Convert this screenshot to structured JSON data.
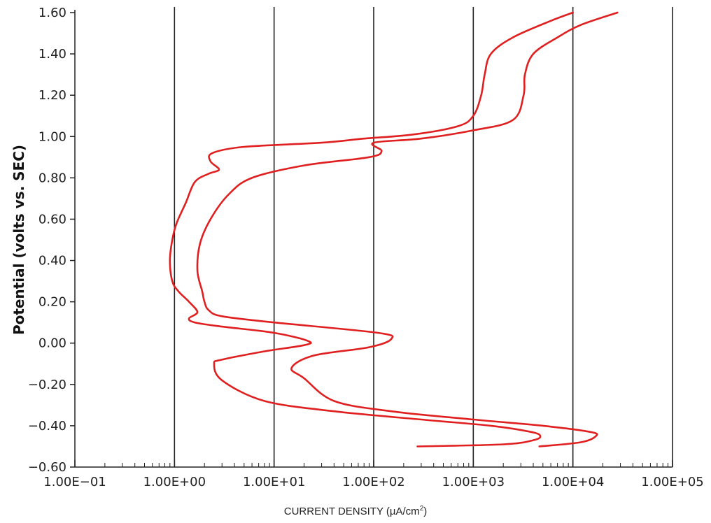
{
  "chart_data": {
    "type": "line",
    "xscale": "log",
    "xlim": [
      0.1,
      100000
    ],
    "ylim": [
      -0.6,
      1.6
    ],
    "ylabel": "Potential (volts vs. SEC)",
    "xlabel_main": "CURRENT DENSITY (µA/cm",
    "xlabel_sup": "2",
    "xlabel_close": ")",
    "x_ticks": [
      {
        "value": 0.1,
        "label": "1.00E−01"
      },
      {
        "value": 1,
        "label": "1.00E+00"
      },
      {
        "value": 10,
        "label": "1.00E+01"
      },
      {
        "value": 100,
        "label": "1.00E+02"
      },
      {
        "value": 1000,
        "label": "1.00E+03"
      },
      {
        "value": 10000,
        "label": "1.00E+04"
      },
      {
        "value": 100000,
        "label": "1.00E+05"
      }
    ],
    "y_ticks": [
      {
        "value": 1.6,
        "label": "1.60"
      },
      {
        "value": 1.4,
        "label": "1.40"
      },
      {
        "value": 1.2,
        "label": "1.20"
      },
      {
        "value": 1.0,
        "label": "1.00"
      },
      {
        "value": 0.8,
        "label": "0.80"
      },
      {
        "value": 0.6,
        "label": "0.60"
      },
      {
        "value": 0.4,
        "label": "0.40"
      },
      {
        "value": 0.2,
        "label": "0.20"
      },
      {
        "value": 0.0,
        "label": "0.00"
      },
      {
        "value": -0.2,
        "label": "−0.20"
      },
      {
        "value": -0.4,
        "label": "−0.40"
      },
      {
        "value": -0.6,
        "label": "−0.60"
      }
    ],
    "vertical_gridlines_at": [
      1,
      10,
      100,
      1000,
      10000,
      100000
    ],
    "series_color": "#e02020",
    "series": [
      {
        "points": [
          [
            275,
            -0.5
          ],
          [
            2000,
            -0.49
          ],
          [
            4000,
            -0.47
          ],
          [
            4700,
            -0.45
          ],
          [
            3800,
            -0.43
          ],
          [
            1500,
            -0.4
          ],
          [
            300,
            -0.37
          ],
          [
            40,
            -0.33
          ],
          [
            8,
            -0.28
          ],
          [
            3,
            -0.18
          ],
          [
            2.5,
            -0.1
          ],
          [
            3,
            -0.08
          ],
          [
            8,
            -0.04
          ],
          [
            20,
            -0.01
          ],
          [
            22,
            0.01
          ],
          [
            10,
            0.05
          ],
          [
            3,
            0.08
          ],
          [
            1.6,
            0.1
          ],
          [
            1.4,
            0.12
          ],
          [
            1.7,
            0.15
          ],
          [
            1.4,
            0.2
          ],
          [
            1.1,
            0.25
          ],
          [
            0.95,
            0.3
          ],
          [
            0.9,
            0.4
          ],
          [
            0.95,
            0.5
          ],
          [
            1.05,
            0.58
          ],
          [
            1.3,
            0.68
          ],
          [
            1.6,
            0.78
          ],
          [
            2.2,
            0.82
          ],
          [
            2.8,
            0.84
          ],
          [
            2.3,
            0.88
          ],
          [
            2.4,
            0.92
          ],
          [
            5,
            0.95
          ],
          [
            30,
            0.97
          ],
          [
            80,
            0.99
          ],
          [
            250,
            1.01
          ],
          [
            700,
            1.05
          ],
          [
            1000,
            1.1
          ],
          [
            1200,
            1.2
          ],
          [
            1300,
            1.3
          ],
          [
            1500,
            1.4
          ],
          [
            2500,
            1.48
          ],
          [
            6000,
            1.56
          ],
          [
            10000,
            1.6
          ]
        ]
      },
      {
        "points": [
          [
            4600,
            -0.5
          ],
          [
            12000,
            -0.48
          ],
          [
            17000,
            -0.45
          ],
          [
            15000,
            -0.43
          ],
          [
            5000,
            -0.4
          ],
          [
            1000,
            -0.37
          ],
          [
            150,
            -0.33
          ],
          [
            40,
            -0.28
          ],
          [
            20,
            -0.17
          ],
          [
            15,
            -0.12
          ],
          [
            25,
            -0.06
          ],
          [
            90,
            -0.02
          ],
          [
            150,
            0.02
          ],
          [
            110,
            0.05
          ],
          [
            10,
            0.1
          ],
          [
            3,
            0.13
          ],
          [
            2.2,
            0.16
          ],
          [
            2,
            0.2
          ],
          [
            1.9,
            0.25
          ],
          [
            1.7,
            0.35
          ],
          [
            1.8,
            0.48
          ],
          [
            2.3,
            0.6
          ],
          [
            3.5,
            0.72
          ],
          [
            6,
            0.8
          ],
          [
            20,
            0.86
          ],
          [
            90,
            0.9
          ],
          [
            120,
            0.93
          ],
          [
            100,
            0.97
          ],
          [
            300,
            0.99
          ],
          [
            1000,
            1.03
          ],
          [
            2500,
            1.08
          ],
          [
            3200,
            1.2
          ],
          [
            3300,
            1.3
          ],
          [
            4000,
            1.4
          ],
          [
            7000,
            1.48
          ],
          [
            12000,
            1.54
          ],
          [
            28000,
            1.6
          ]
        ]
      }
    ]
  }
}
